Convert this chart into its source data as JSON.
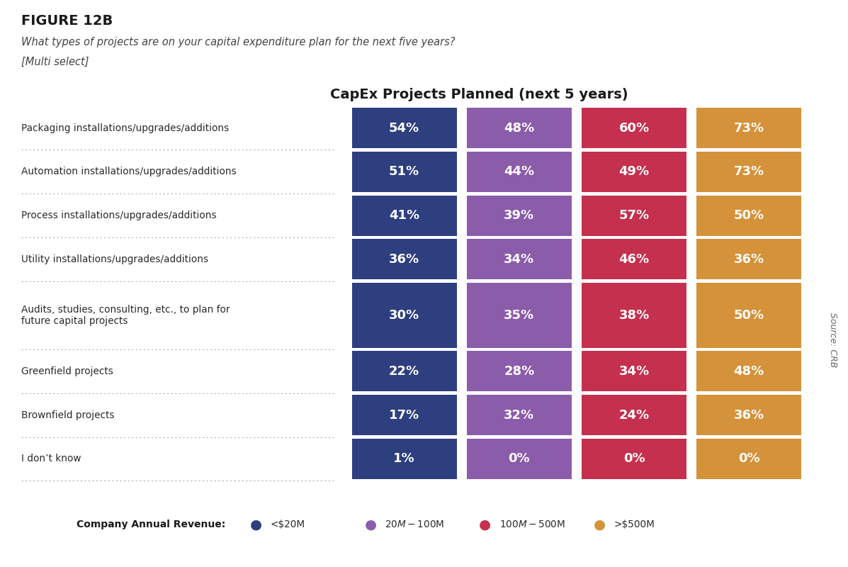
{
  "figure_label": "FIGURE 12B",
  "subtitle_line1": "What types of projects are on your capital expenditure plan for the next five years?",
  "subtitle_line2": "[Multi select]",
  "chart_title": "CapEx Projects Planned (next 5 years)",
  "categories": [
    "Packaging installations/upgrades/additions",
    "Automation installations/upgrades/additions",
    "Process installations/upgrades/additions",
    "Utility installations/upgrades/additions",
    "Audits, studies, consulting, etc., to plan for\nfuture capital projects",
    "Greenfield projects",
    "Brownfield projects",
    "I don’t know"
  ],
  "row_heights": [
    1.0,
    1.0,
    1.0,
    1.0,
    1.6,
    1.0,
    1.0,
    1.0
  ],
  "series": [
    {
      "label": "<$20M",
      "color": "#2e3f7f",
      "values": [
        54,
        51,
        41,
        36,
        30,
        22,
        17,
        1
      ]
    },
    {
      "label": "$20M - $100M",
      "color": "#8b5caa",
      "values": [
        48,
        44,
        39,
        34,
        35,
        28,
        32,
        0
      ]
    },
    {
      "label": "$100M - $500M",
      "color": "#c4304e",
      "values": [
        60,
        49,
        57,
        46,
        38,
        34,
        24,
        0
      ]
    },
    {
      "label": ">$500M",
      "color": "#d4923a",
      "values": [
        73,
        73,
        50,
        36,
        50,
        48,
        36,
        0
      ]
    }
  ],
  "legend_title": "Company Annual Revenue:",
  "source_text": "Source: CRB",
  "background_color": "#ffffff"
}
